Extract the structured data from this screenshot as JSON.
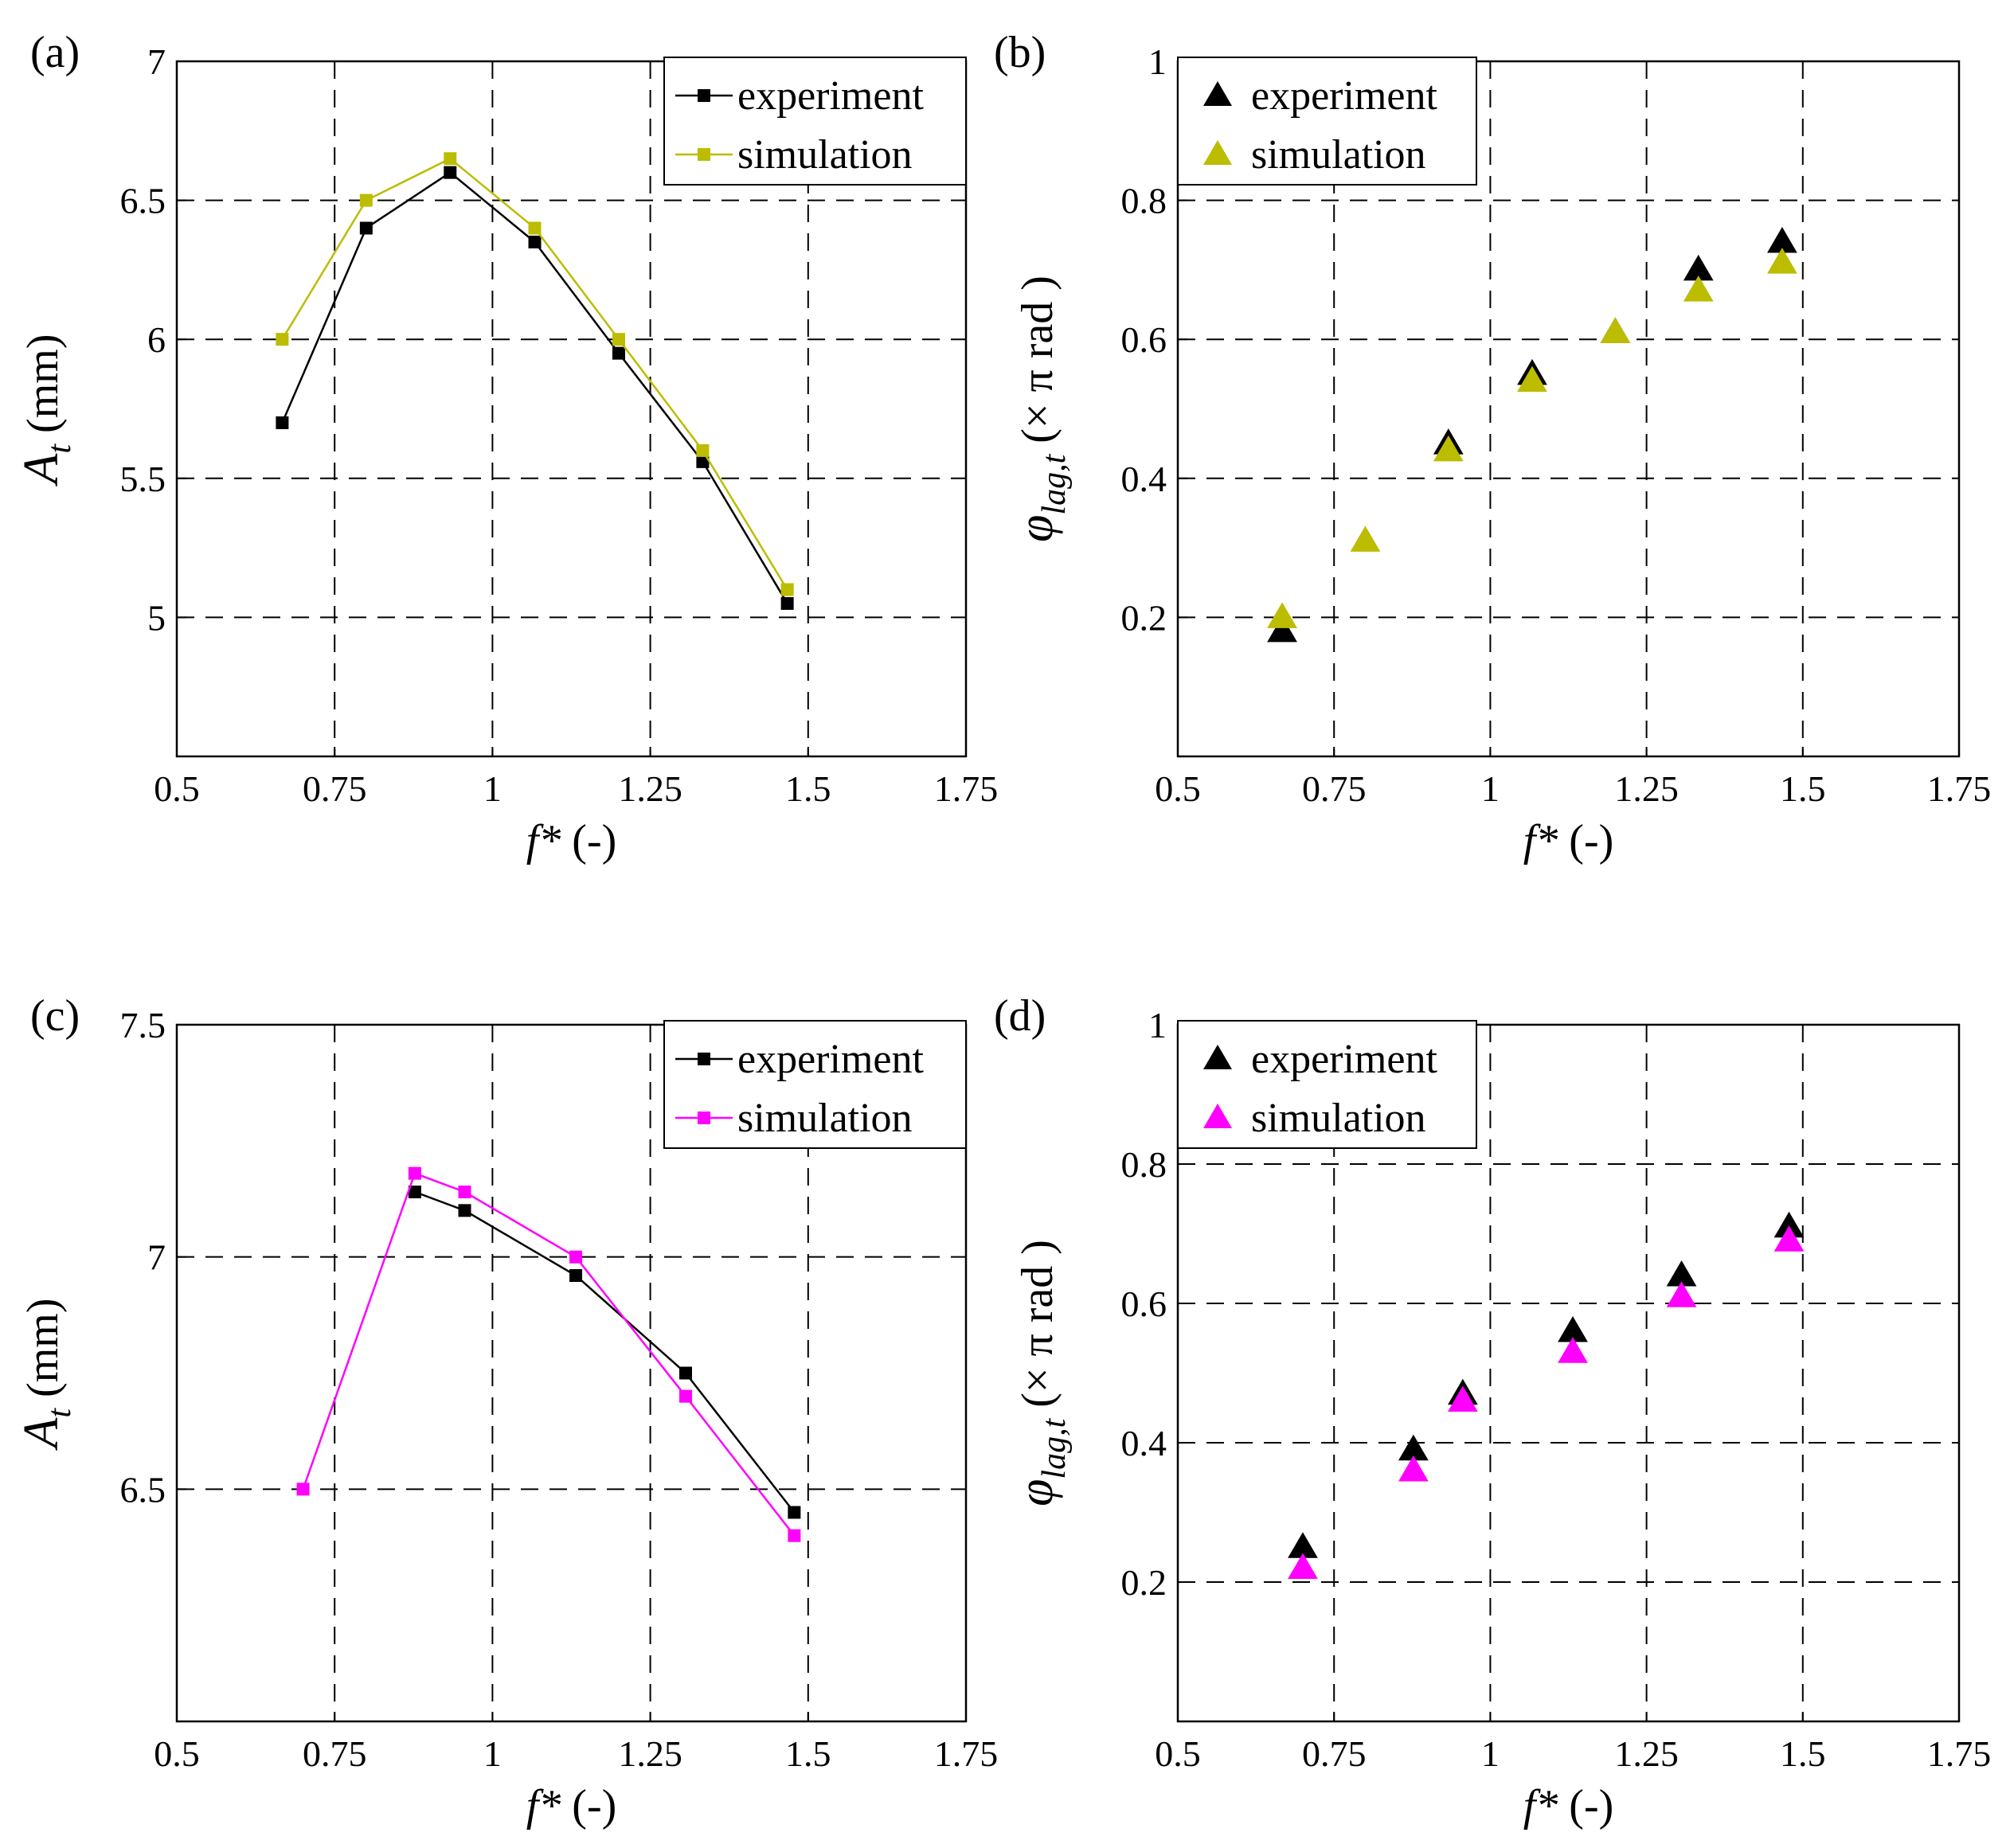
{
  "chart_data": [
    {
      "panel": "(a)",
      "type": "line",
      "marker": "square",
      "xlabel": "f* (-)",
      "ylabel": "A_t (mm)",
      "ylabel_main": "A",
      "ylabel_sub": "t",
      "ylabel_unit": " (mm)",
      "xlabel_main": "f*",
      "xlabel_unit": " (-)",
      "xlim": [
        0.5,
        1.75
      ],
      "ylim": [
        4.5,
        7
      ],
      "xticks": [
        0.5,
        0.75,
        1,
        1.25,
        1.5,
        1.75
      ],
      "xtick_labels": [
        "0.5",
        "0.75",
        "1",
        "1.25",
        "1.5",
        "1.75"
      ],
      "yticks": [
        5,
        5.5,
        6,
        6.5,
        7
      ],
      "ytick_labels": [
        "5",
        "5.5",
        "6",
        "6.5",
        "7"
      ],
      "legend": "top-right",
      "series": [
        {
          "name": "experiment",
          "color": "#000000",
          "x": [
            0.667,
            0.8,
            0.933,
            1.067,
            1.2,
            1.333,
            1.467
          ],
          "values": [
            5.7,
            6.4,
            6.6,
            6.35,
            5.95,
            5.56,
            5.05
          ]
        },
        {
          "name": "simulation",
          "color": "#bcbc00",
          "x": [
            0.667,
            0.8,
            0.933,
            1.067,
            1.2,
            1.333,
            1.467
          ],
          "values": [
            6.0,
            6.5,
            6.65,
            6.4,
            6.0,
            5.6,
            5.1
          ]
        }
      ]
    },
    {
      "panel": "(b)",
      "type": "scatter",
      "marker": "triangle",
      "xlabel": "f* (-)",
      "ylabel": "φ_lag,t (× π rad )",
      "ylabel_main": "φ",
      "ylabel_sub": "lag,t",
      "ylabel_unit": " (× π rad )",
      "xlabel_main": "f*",
      "xlabel_unit": " (-)",
      "xlim": [
        0.5,
        1.75
      ],
      "ylim": [
        0,
        1
      ],
      "xticks": [
        0.5,
        0.75,
        1,
        1.25,
        1.5,
        1.75
      ],
      "xtick_labels": [
        "0.5",
        "0.75",
        "1",
        "1.25",
        "1.5",
        "1.75"
      ],
      "yticks": [
        0.2,
        0.4,
        0.6,
        0.8,
        1
      ],
      "ytick_labels": [
        "0.2",
        "0.4",
        "0.6",
        "0.8",
        "1"
      ],
      "legend": "top-left",
      "series": [
        {
          "name": "experiment",
          "color": "#000000",
          "x": [
            0.667,
            0.933,
            1.067,
            1.2,
            1.333,
            1.467
          ],
          "values": [
            0.18,
            0.45,
            0.55,
            0.61,
            0.7,
            0.74
          ]
        },
        {
          "name": "simulation",
          "color": "#bcbc00",
          "x": [
            0.667,
            0.8,
            0.933,
            1.067,
            1.2,
            1.333,
            1.467
          ],
          "values": [
            0.2,
            0.31,
            0.44,
            0.54,
            0.61,
            0.67,
            0.71
          ]
        }
      ]
    },
    {
      "panel": "(c)",
      "type": "line",
      "marker": "square",
      "xlabel": "f* (-)",
      "ylabel": "A_t (mm)",
      "ylabel_main": "A",
      "ylabel_sub": "t",
      "ylabel_unit": " (mm)",
      "xlabel_main": "f*",
      "xlabel_unit": " (-)",
      "xlim": [
        0.5,
        1.75
      ],
      "ylim": [
        6,
        7.5
      ],
      "xticks": [
        0.5,
        0.75,
        1,
        1.25,
        1.5,
        1.75
      ],
      "xtick_labels": [
        "0.5",
        "0.75",
        "1",
        "1.25",
        "1.5",
        "1.75"
      ],
      "yticks": [
        6.5,
        7,
        7.5
      ],
      "ytick_labels": [
        "6.5",
        "7",
        "7.5"
      ],
      "legend": "top-right",
      "series": [
        {
          "name": "experiment",
          "color": "#000000",
          "x": [
            0.877,
            0.956,
            1.132,
            1.306,
            1.478
          ],
          "values": [
            7.14,
            7.1,
            6.96,
            6.75,
            6.45
          ]
        },
        {
          "name": "simulation",
          "color": "#ff00ff",
          "x": [
            0.7,
            0.877,
            0.956,
            1.132,
            1.306,
            1.478
          ],
          "values": [
            6.5,
            7.18,
            7.14,
            7.0,
            6.7,
            6.4
          ]
        }
      ]
    },
    {
      "panel": "(d)",
      "type": "scatter",
      "marker": "triangle",
      "xlabel": "f* (-)",
      "ylabel": "φ_lag,t (× π rad )",
      "ylabel_main": "φ",
      "ylabel_sub": "lag,t",
      "ylabel_unit": " (× π rad )",
      "xlabel_main": "f*",
      "xlabel_unit": " (-)",
      "xlim": [
        0.5,
        1.75
      ],
      "ylim": [
        0,
        1
      ],
      "xticks": [
        0.5,
        0.75,
        1,
        1.25,
        1.5,
        1.75
      ],
      "xtick_labels": [
        "0.5",
        "0.75",
        "1",
        "1.25",
        "1.5",
        "1.75"
      ],
      "yticks": [
        0.2,
        0.4,
        0.6,
        0.8,
        1
      ],
      "ytick_labels": [
        "0.2",
        "0.4",
        "0.6",
        "0.8",
        "1"
      ],
      "legend": "top-left",
      "series": [
        {
          "name": "experiment",
          "color": "#000000",
          "x": [
            0.7,
            0.877,
            0.956,
            1.132,
            1.306,
            1.478
          ],
          "values": [
            0.25,
            0.39,
            0.47,
            0.56,
            0.64,
            0.71
          ]
        },
        {
          "name": "simulation",
          "color": "#ff00ff",
          "x": [
            0.7,
            0.877,
            0.956,
            1.132,
            1.306,
            1.478
          ],
          "values": [
            0.22,
            0.36,
            0.46,
            0.53,
            0.61,
            0.69
          ]
        }
      ]
    }
  ]
}
